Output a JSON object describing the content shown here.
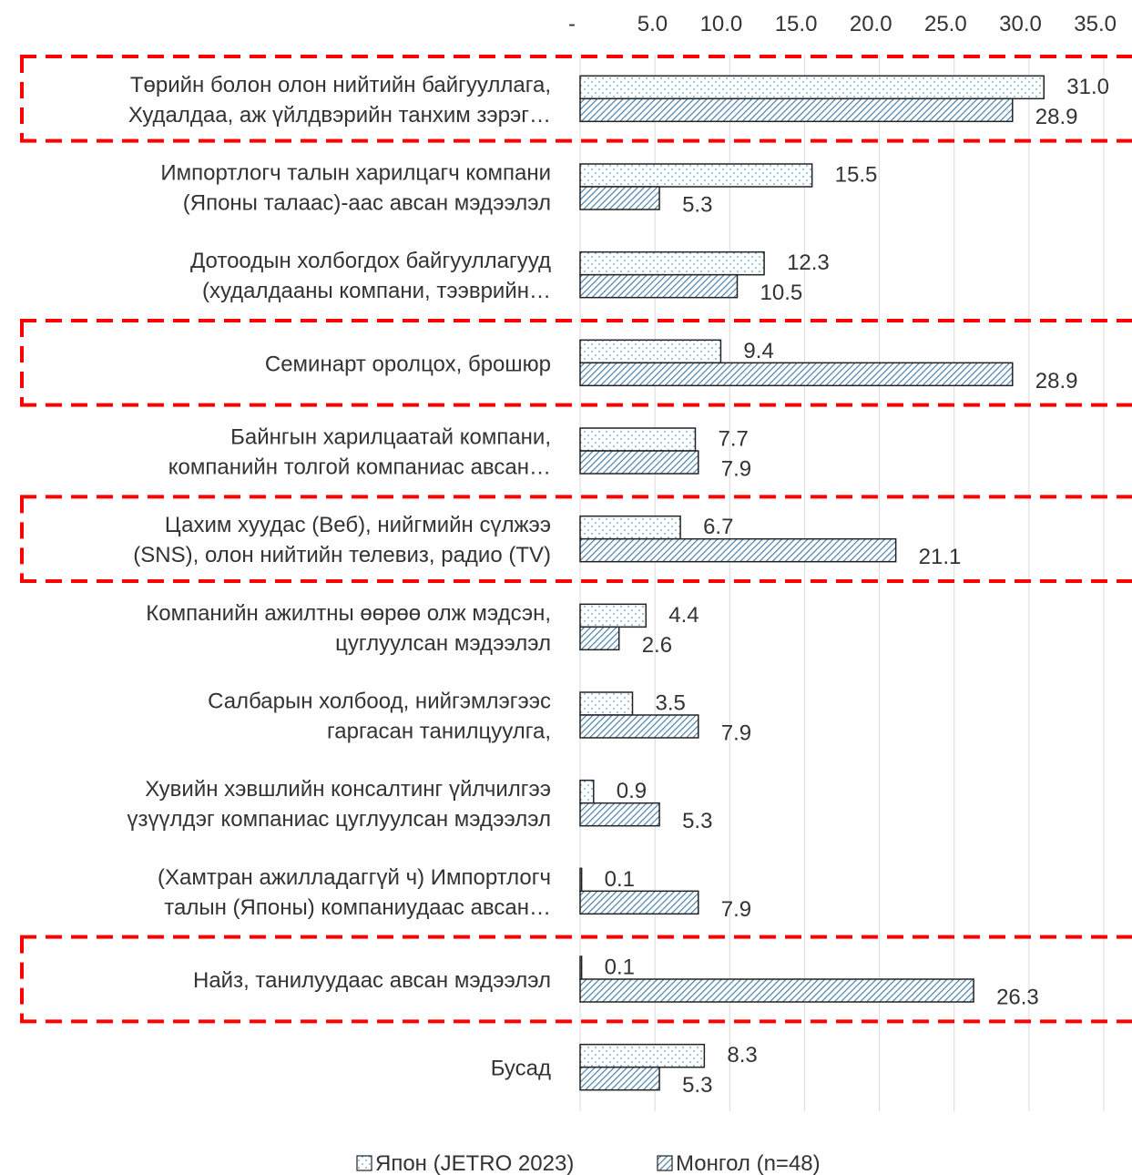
{
  "chart_data": {
    "type": "bar",
    "orientation": "horizontal",
    "x_ticks": [
      "-",
      "5.0",
      "10.0",
      "15.0",
      "20.0",
      "25.0",
      "30.0",
      "35.0"
    ],
    "xlim": [
      0,
      35
    ],
    "categories": [
      {
        "lines": [
          "Төрийн болон олон нийтийн байгууллага,",
          "Худалдаа, аж үйлдвэрийн танхим зэрэг…"
        ],
        "highlight": true
      },
      {
        "lines": [
          "Импортлогч талын харилцагч компани",
          "(Японы талаас)-аас авсан мэдээлэл"
        ],
        "highlight": false
      },
      {
        "lines": [
          "Дотоодын холбогдох байгууллагууд",
          "(худалдааны компани, тээврийн…"
        ],
        "highlight": false
      },
      {
        "lines": [
          "Семинарт оролцох, брошюр"
        ],
        "highlight": true
      },
      {
        "lines": [
          "Байнгын харилцаатай компани,",
          "компанийн толгой компаниас авсан…"
        ],
        "highlight": false
      },
      {
        "lines": [
          "Цахим хуудас (Веб), нийгмийн сүлжээ",
          "(SNS), олон нийтийн телевиз, радио (TV)"
        ],
        "highlight": true
      },
      {
        "lines": [
          "Компанийн ажилтны өөрөө олж мэдсэн,",
          "цуглуулсан мэдээлэл"
        ],
        "highlight": false
      },
      {
        "lines": [
          "Салбарын холбоод, нийгэмлэгээс",
          "гаргасан танилцуулга,"
        ],
        "highlight": false
      },
      {
        "lines": [
          "Хувийн хэвшлийн консалтинг үйлчилгээ",
          "үзүүлдэг компаниас цуглуулсан мэдээлэл"
        ],
        "highlight": false
      },
      {
        "lines": [
          "(Хамтран ажилладаггүй ч) Импортлогч",
          "талын (Японы) компаниудаас авсан…"
        ],
        "highlight": false
      },
      {
        "lines": [
          "Найз, танилуудаас авсан мэдээлэл"
        ],
        "highlight": true
      },
      {
        "lines": [
          "Бусад"
        ],
        "highlight": false
      }
    ],
    "series": [
      {
        "name": "Япон (JETRO 2023)",
        "pattern": "dots",
        "values": [
          31.0,
          15.5,
          12.3,
          9.4,
          7.7,
          6.7,
          4.4,
          3.5,
          0.9,
          0.1,
          0.1,
          8.3
        ],
        "labels": [
          "31.0",
          "15.5",
          "12.3",
          "9.4",
          "7.7",
          "6.7",
          "4.4",
          "3.5",
          "0.9",
          "0.1",
          "0.1",
          "8.3"
        ]
      },
      {
        "name": "Монгол (n=48)",
        "pattern": "hatch",
        "values": [
          28.9,
          5.3,
          10.5,
          28.9,
          7.9,
          21.1,
          2.6,
          7.9,
          5.3,
          7.9,
          26.3,
          5.3
        ],
        "labels": [
          "28.9",
          "5.3",
          "10.5",
          "28.9",
          "7.9",
          "21.1",
          "2.6",
          "7.9",
          "5.3",
          "7.9",
          "26.3",
          "5.3"
        ]
      }
    ],
    "legend_position": "bottom",
    "colors": {
      "highlight_box": "#ff0000",
      "bar_outline": "#222222",
      "dot": "#5b9bd5",
      "hatch": "#4a7fa8",
      "grid": "#d9d9d9"
    }
  }
}
